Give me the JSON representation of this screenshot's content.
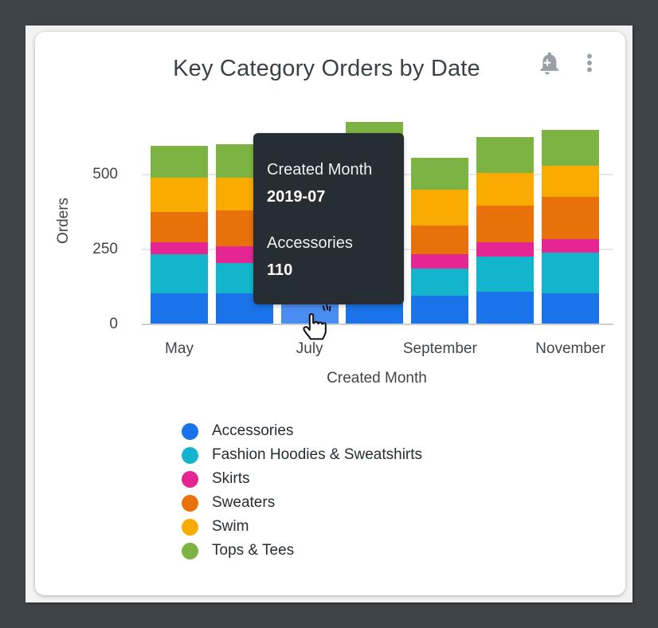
{
  "window": {
    "tile_title": "Key Category Orders by Date"
  },
  "toolbar": {
    "alert_icon": "bell-plus-icon",
    "menu_icon": "kebab-menu-icon",
    "icon_color": "#9aa0a6"
  },
  "chart_data": {
    "type": "bar",
    "stacked": true,
    "title": "Key Category Orders by Date",
    "xlabel": "Created Month",
    "ylabel": "Orders",
    "x": [
      "2019-05",
      "2019-06",
      "2019-07",
      "2019-08",
      "2019-09",
      "2019-10",
      "2019-11"
    ],
    "x_tick_labels": [
      "May",
      "July",
      "September",
      "November"
    ],
    "x_tick_indices": [
      0,
      2,
      4,
      6
    ],
    "y_ticks": [
      0,
      250,
      500
    ],
    "ylim": [
      0,
      700
    ],
    "grid": "horizontal",
    "legend_position": "bottom-left",
    "series": [
      {
        "name": "Accessories",
        "color": "#1A73E8",
        "values": [
          105,
          105,
          110,
          110,
          95,
          110,
          105
        ]
      },
      {
        "name": "Fashion Hoodies & Sweatshirts",
        "color": "#12B5CB",
        "values": [
          130,
          100,
          115,
          120,
          90,
          115,
          135
        ]
      },
      {
        "name": "Skirts",
        "color": "#E52592",
        "values": [
          40,
          55,
          45,
          55,
          50,
          50,
          45
        ]
      },
      {
        "name": "Sweaters",
        "color": "#E8710A",
        "values": [
          100,
          120,
          115,
          130,
          95,
          120,
          140
        ]
      },
      {
        "name": "Swim",
        "color": "#F9AB00",
        "values": [
          115,
          110,
          115,
          130,
          120,
          110,
          105
        ]
      },
      {
        "name": "Tops & Tees",
        "color": "#7CB342",
        "values": [
          105,
          110,
          110,
          130,
          105,
          120,
          120
        ]
      }
    ]
  },
  "hover": {
    "month": "2019-07",
    "month_index": 2,
    "series": "Accessories",
    "highlight_color": "#4A8DF0"
  },
  "tooltip": {
    "dimension_label": "Created Month",
    "dimension_value": "2019-07",
    "measure_label": "Accessories",
    "measure_value": "110"
  },
  "colors": {
    "frame": "#3d4347",
    "page": "#f2f2f3",
    "card": "#ffffff",
    "title_text": "#3a4247",
    "axis_text": "#414549",
    "legend_text": "#262d33",
    "gridline": "#e7e8ea",
    "axis_line": "#c9ced4",
    "tooltip_bg": "#262d33"
  }
}
